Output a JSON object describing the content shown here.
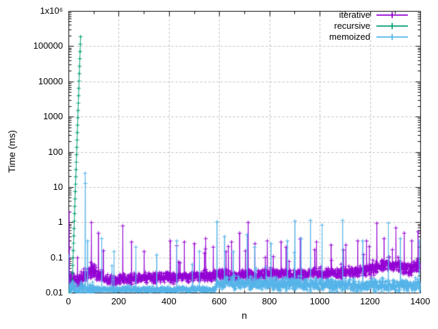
{
  "chart_data": {
    "type": "line",
    "title": "",
    "xlabel": "n",
    "ylabel": "Time (ms)",
    "grid": true,
    "legend_position": "top-right-inside",
    "x_axis": {
      "scale": "linear",
      "min": 0,
      "max": 1400,
      "minor_step": 100,
      "ticks": [
        {
          "v": 0,
          "label": "0"
        },
        {
          "v": 200,
          "label": "200"
        },
        {
          "v": 400,
          "label": "400"
        },
        {
          "v": 600,
          "label": "600"
        },
        {
          "v": 800,
          "label": "800"
        },
        {
          "v": 1000,
          "label": "1000"
        },
        {
          "v": 1200,
          "label": "1200"
        },
        {
          "v": 1400,
          "label": "1400"
        }
      ]
    },
    "y_axis": {
      "scale": "log",
      "min": 0.01,
      "max": 1000000,
      "ticks": [
        {
          "v": 0.01,
          "label": "0.01"
        },
        {
          "v": 0.1,
          "label": "0.1"
        },
        {
          "v": 1,
          "label": "1"
        },
        {
          "v": 10,
          "label": "10"
        },
        {
          "v": 100,
          "label": "100"
        },
        {
          "v": 1000,
          "label": "1000"
        },
        {
          "v": 10000,
          "label": "10000"
        },
        {
          "v": 100000,
          "label": "100000"
        },
        {
          "v": 1000000,
          "label": "1x10⁶"
        }
      ]
    },
    "colors": {
      "axis": "#000000",
      "grid": "#bdbdbd",
      "background": "#ffffff"
    },
    "series": [
      {
        "name": "iterative",
        "color": "#9400d3",
        "marker": "plus",
        "baseline_anchors": [
          [
            0,
            0.02
          ],
          [
            30,
            0.022
          ],
          [
            60,
            0.025
          ],
          [
            90,
            0.045
          ],
          [
            120,
            0.035
          ],
          [
            160,
            0.024
          ],
          [
            200,
            0.023
          ],
          [
            250,
            0.025
          ],
          [
            300,
            0.027
          ],
          [
            350,
            0.028
          ],
          [
            400,
            0.027
          ],
          [
            450,
            0.028
          ],
          [
            500,
            0.029
          ],
          [
            550,
            0.03
          ],
          [
            600,
            0.033
          ],
          [
            650,
            0.031
          ],
          [
            700,
            0.033
          ],
          [
            750,
            0.031
          ],
          [
            800,
            0.035
          ],
          [
            850,
            0.037
          ],
          [
            900,
            0.033
          ],
          [
            950,
            0.035
          ],
          [
            1000,
            0.035
          ],
          [
            1050,
            0.035
          ],
          [
            1100,
            0.037
          ],
          [
            1150,
            0.04
          ],
          [
            1200,
            0.045
          ],
          [
            1250,
            0.06
          ],
          [
            1300,
            0.065
          ],
          [
            1340,
            0.05
          ],
          [
            1400,
            0.055
          ]
        ],
        "noise": {
          "segments": [
            [
              130,
              0.11
            ],
            [
              1200,
              0.075
            ],
            [
              1400,
              0.1
            ]
          ],
          "tail_prob": 0.02,
          "tail_mult": 5
        },
        "spikes": [
          [
            1,
            2.0
          ],
          [
            2,
            0.18
          ],
          [
            35,
            0.1
          ],
          [
            90,
            1.0
          ],
          [
            118,
            0.5
          ],
          [
            215,
            0.8
          ],
          [
            250,
            0.28
          ],
          [
            300,
            0.15
          ],
          [
            404,
            0.3
          ],
          [
            430,
            0.22
          ],
          [
            460,
            0.28
          ],
          [
            500,
            0.25
          ],
          [
            545,
            0.35
          ],
          [
            575,
            0.2
          ],
          [
            648,
            0.28
          ],
          [
            680,
            0.5
          ],
          [
            714,
            1.0
          ],
          [
            741,
            0.25
          ],
          [
            790,
            0.3
          ],
          [
            845,
            0.28
          ],
          [
            865,
            0.2
          ],
          [
            921,
            0.34
          ],
          [
            986,
            0.28
          ],
          [
            1044,
            0.23
          ],
          [
            1103,
            0.23
          ],
          [
            1150,
            0.3
          ],
          [
            1185,
            0.3
          ],
          [
            1226,
            0.95
          ],
          [
            1255,
            0.35
          ],
          [
            1302,
            0.7
          ],
          [
            1335,
            0.5
          ],
          [
            1365,
            0.3
          ],
          [
            1390,
            0.55
          ]
        ]
      },
      {
        "name": "recursive",
        "color": "#009e73",
        "marker": "plus",
        "points": [
          [
            0,
            0.011
          ],
          [
            1,
            0.01
          ],
          [
            2,
            0.01
          ],
          [
            3,
            0.011
          ],
          [
            4,
            0.01
          ],
          [
            5,
            0.011
          ],
          [
            6,
            0.011
          ],
          [
            7,
            0.012
          ],
          [
            8,
            0.012
          ],
          [
            9,
            0.013
          ],
          [
            10,
            0.013
          ],
          [
            11,
            0.014
          ],
          [
            12,
            0.0145
          ],
          [
            13,
            0.016
          ],
          [
            14,
            0.023
          ],
          [
            15,
            0.038
          ],
          [
            16,
            0.061
          ],
          [
            17,
            0.1
          ],
          [
            18,
            0.16
          ],
          [
            19,
            0.26
          ],
          [
            20,
            0.42
          ],
          [
            21,
            0.68
          ],
          [
            22,
            1.1
          ],
          [
            23,
            1.8
          ],
          [
            24,
            2.9
          ],
          [
            25,
            4.7
          ],
          [
            26,
            7.6
          ],
          [
            27,
            12.3
          ],
          [
            28,
            20
          ],
          [
            29,
            32
          ],
          [
            30,
            52
          ],
          [
            31,
            85
          ],
          [
            32,
            137
          ],
          [
            33,
            222
          ],
          [
            34,
            360
          ],
          [
            35,
            585
          ],
          [
            36,
            950
          ],
          [
            37,
            1530
          ],
          [
            38,
            2480
          ],
          [
            39,
            4000
          ],
          [
            40,
            6500
          ],
          [
            41,
            10500
          ],
          [
            42,
            17000
          ],
          [
            43,
            27600
          ],
          [
            44,
            45000
          ],
          [
            45,
            72000
          ],
          [
            46,
            117000
          ],
          [
            47,
            190000
          ]
        ]
      },
      {
        "name": "memoized",
        "color": "#56b4e9",
        "marker": "plus",
        "baseline_anchors": [
          [
            0,
            0.014
          ],
          [
            40,
            0.013
          ],
          [
            100,
            0.0125
          ],
          [
            580,
            0.0125
          ],
          [
            595,
            0.02
          ],
          [
            700,
            0.019
          ],
          [
            800,
            0.018
          ],
          [
            900,
            0.018
          ],
          [
            1000,
            0.017
          ],
          [
            1100,
            0.016
          ],
          [
            1250,
            0.016
          ],
          [
            1400,
            0.016
          ]
        ],
        "noise": {
          "segments": [
            [
              100,
              0.1
            ],
            [
              585,
              0.04
            ],
            [
              1400,
              0.09
            ]
          ],
          "tail_prob": 0.008,
          "tail_mult": 4
        },
        "spikes": [
          [
            0,
            0.115
          ],
          [
            65,
            25
          ],
          [
            66,
            13
          ],
          [
            75,
            0.3
          ],
          [
            131,
            0.35
          ],
          [
            180,
            0.15
          ],
          [
            267,
            0.2
          ],
          [
            350,
            0.12
          ],
          [
            430,
            0.3
          ],
          [
            520,
            0.15
          ],
          [
            590,
            1.05
          ],
          [
            620,
            0.4
          ],
          [
            655,
            0.15
          ],
          [
            710,
            0.45
          ],
          [
            740,
            0.2
          ],
          [
            805,
            0.25
          ],
          [
            870,
            0.3
          ],
          [
            900,
            1.1
          ],
          [
            925,
            0.35
          ],
          [
            962,
            1.15
          ],
          [
            1008,
            0.85
          ],
          [
            1090,
            1.15
          ],
          [
            1170,
            0.3
          ],
          [
            1272,
            0.95
          ],
          [
            1320,
            0.35
          ],
          [
            1395,
            0.3
          ]
        ]
      }
    ]
  }
}
